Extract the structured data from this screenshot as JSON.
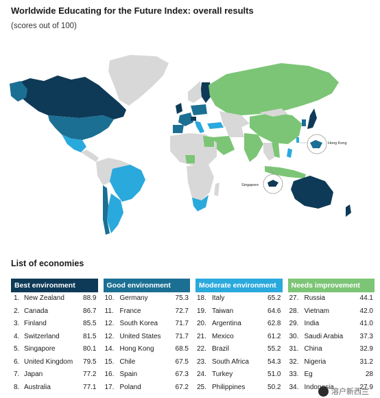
{
  "header": {
    "title": "Worldwide Educating for the Future Index: overall results",
    "subtitle": "(scores out of 100)"
  },
  "map": {
    "callouts": {
      "hong_kong": "Hong Kong",
      "singapore": "Singapore"
    }
  },
  "list_title": "List of economies",
  "colors": {
    "best": "#0e3a57",
    "good": "#1b6f93",
    "moderate": "#2aa9dd",
    "needs": "#7cc576",
    "nodata": "#d8d8d8",
    "ocean": "#ffffff"
  },
  "chart_data": {
    "type": "table",
    "title": "Worldwide Educating for the Future Index: overall results",
    "subtitle": "(scores out of 100)",
    "categories": [
      {
        "name": "Best environment",
        "color": "#0e3a57",
        "rows": [
          {
            "rank": "1.",
            "country": "New Zealand",
            "score": "88.9"
          },
          {
            "rank": "2.",
            "country": "Canada",
            "score": "86.7"
          },
          {
            "rank": "3.",
            "country": "Finland",
            "score": "85.5"
          },
          {
            "rank": "4.",
            "country": "Switzerland",
            "score": "81.5"
          },
          {
            "rank": "5.",
            "country": "Singapore",
            "score": "80.1"
          },
          {
            "rank": "6.",
            "country": "United Kingdom",
            "score": "79.5"
          },
          {
            "rank": "7.",
            "country": "Japan",
            "score": "77.2"
          },
          {
            "rank": "8.",
            "country": "Australia",
            "score": "77.1"
          }
        ]
      },
      {
        "name": "Good environment",
        "color": "#1b6f93",
        "rows": [
          {
            "rank": "10.",
            "country": "Germany",
            "score": "75.3"
          },
          {
            "rank": "11.",
            "country": "France",
            "score": "72.7"
          },
          {
            "rank": "12.",
            "country": "South Korea",
            "score": "71.7"
          },
          {
            "rank": "12.",
            "country": "United States",
            "score": "71.7"
          },
          {
            "rank": "14.",
            "country": "Hong Kong",
            "score": "68.5"
          },
          {
            "rank": "15.",
            "country": "Chile",
            "score": "67.5"
          },
          {
            "rank": "16.",
            "country": "Spain",
            "score": "67.3"
          },
          {
            "rank": "17.",
            "country": "Poland",
            "score": "67.2"
          }
        ]
      },
      {
        "name": "Moderate environment",
        "color": "#2aa9dd",
        "rows": [
          {
            "rank": "18.",
            "country": "Italy",
            "score": "65.2"
          },
          {
            "rank": "19.",
            "country": "Taiwan",
            "score": "64.6"
          },
          {
            "rank": "20.",
            "country": "Argentina",
            "score": "62.8"
          },
          {
            "rank": "21.",
            "country": "Mexico",
            "score": "61.2"
          },
          {
            "rank": "22.",
            "country": "Brazil",
            "score": "55.2"
          },
          {
            "rank": "23.",
            "country": "South Africa",
            "score": "54.3"
          },
          {
            "rank": "24.",
            "country": "Turkey",
            "score": "51.0"
          },
          {
            "rank": "25.",
            "country": "Philippines",
            "score": "50.2"
          }
        ]
      },
      {
        "name": "Needs improvement",
        "color": "#7cc576",
        "rows": [
          {
            "rank": "27.",
            "country": "Russia",
            "score": "44.1"
          },
          {
            "rank": "28.",
            "country": "Vietnam",
            "score": "42.0"
          },
          {
            "rank": "29.",
            "country": "India",
            "score": "41.0"
          },
          {
            "rank": "30.",
            "country": "Saudi Arabia",
            "score": "37.3"
          },
          {
            "rank": "31.",
            "country": "China",
            "score": "32.9"
          },
          {
            "rank": "32.",
            "country": "Nigeria",
            "score": "31.2"
          },
          {
            "rank": "33.",
            "country": "Eg",
            "score": "28"
          },
          {
            "rank": "34.",
            "country": "Indonesia",
            "score": "27.9"
          }
        ]
      }
    ]
  },
  "watermark": "溶户新西兰"
}
